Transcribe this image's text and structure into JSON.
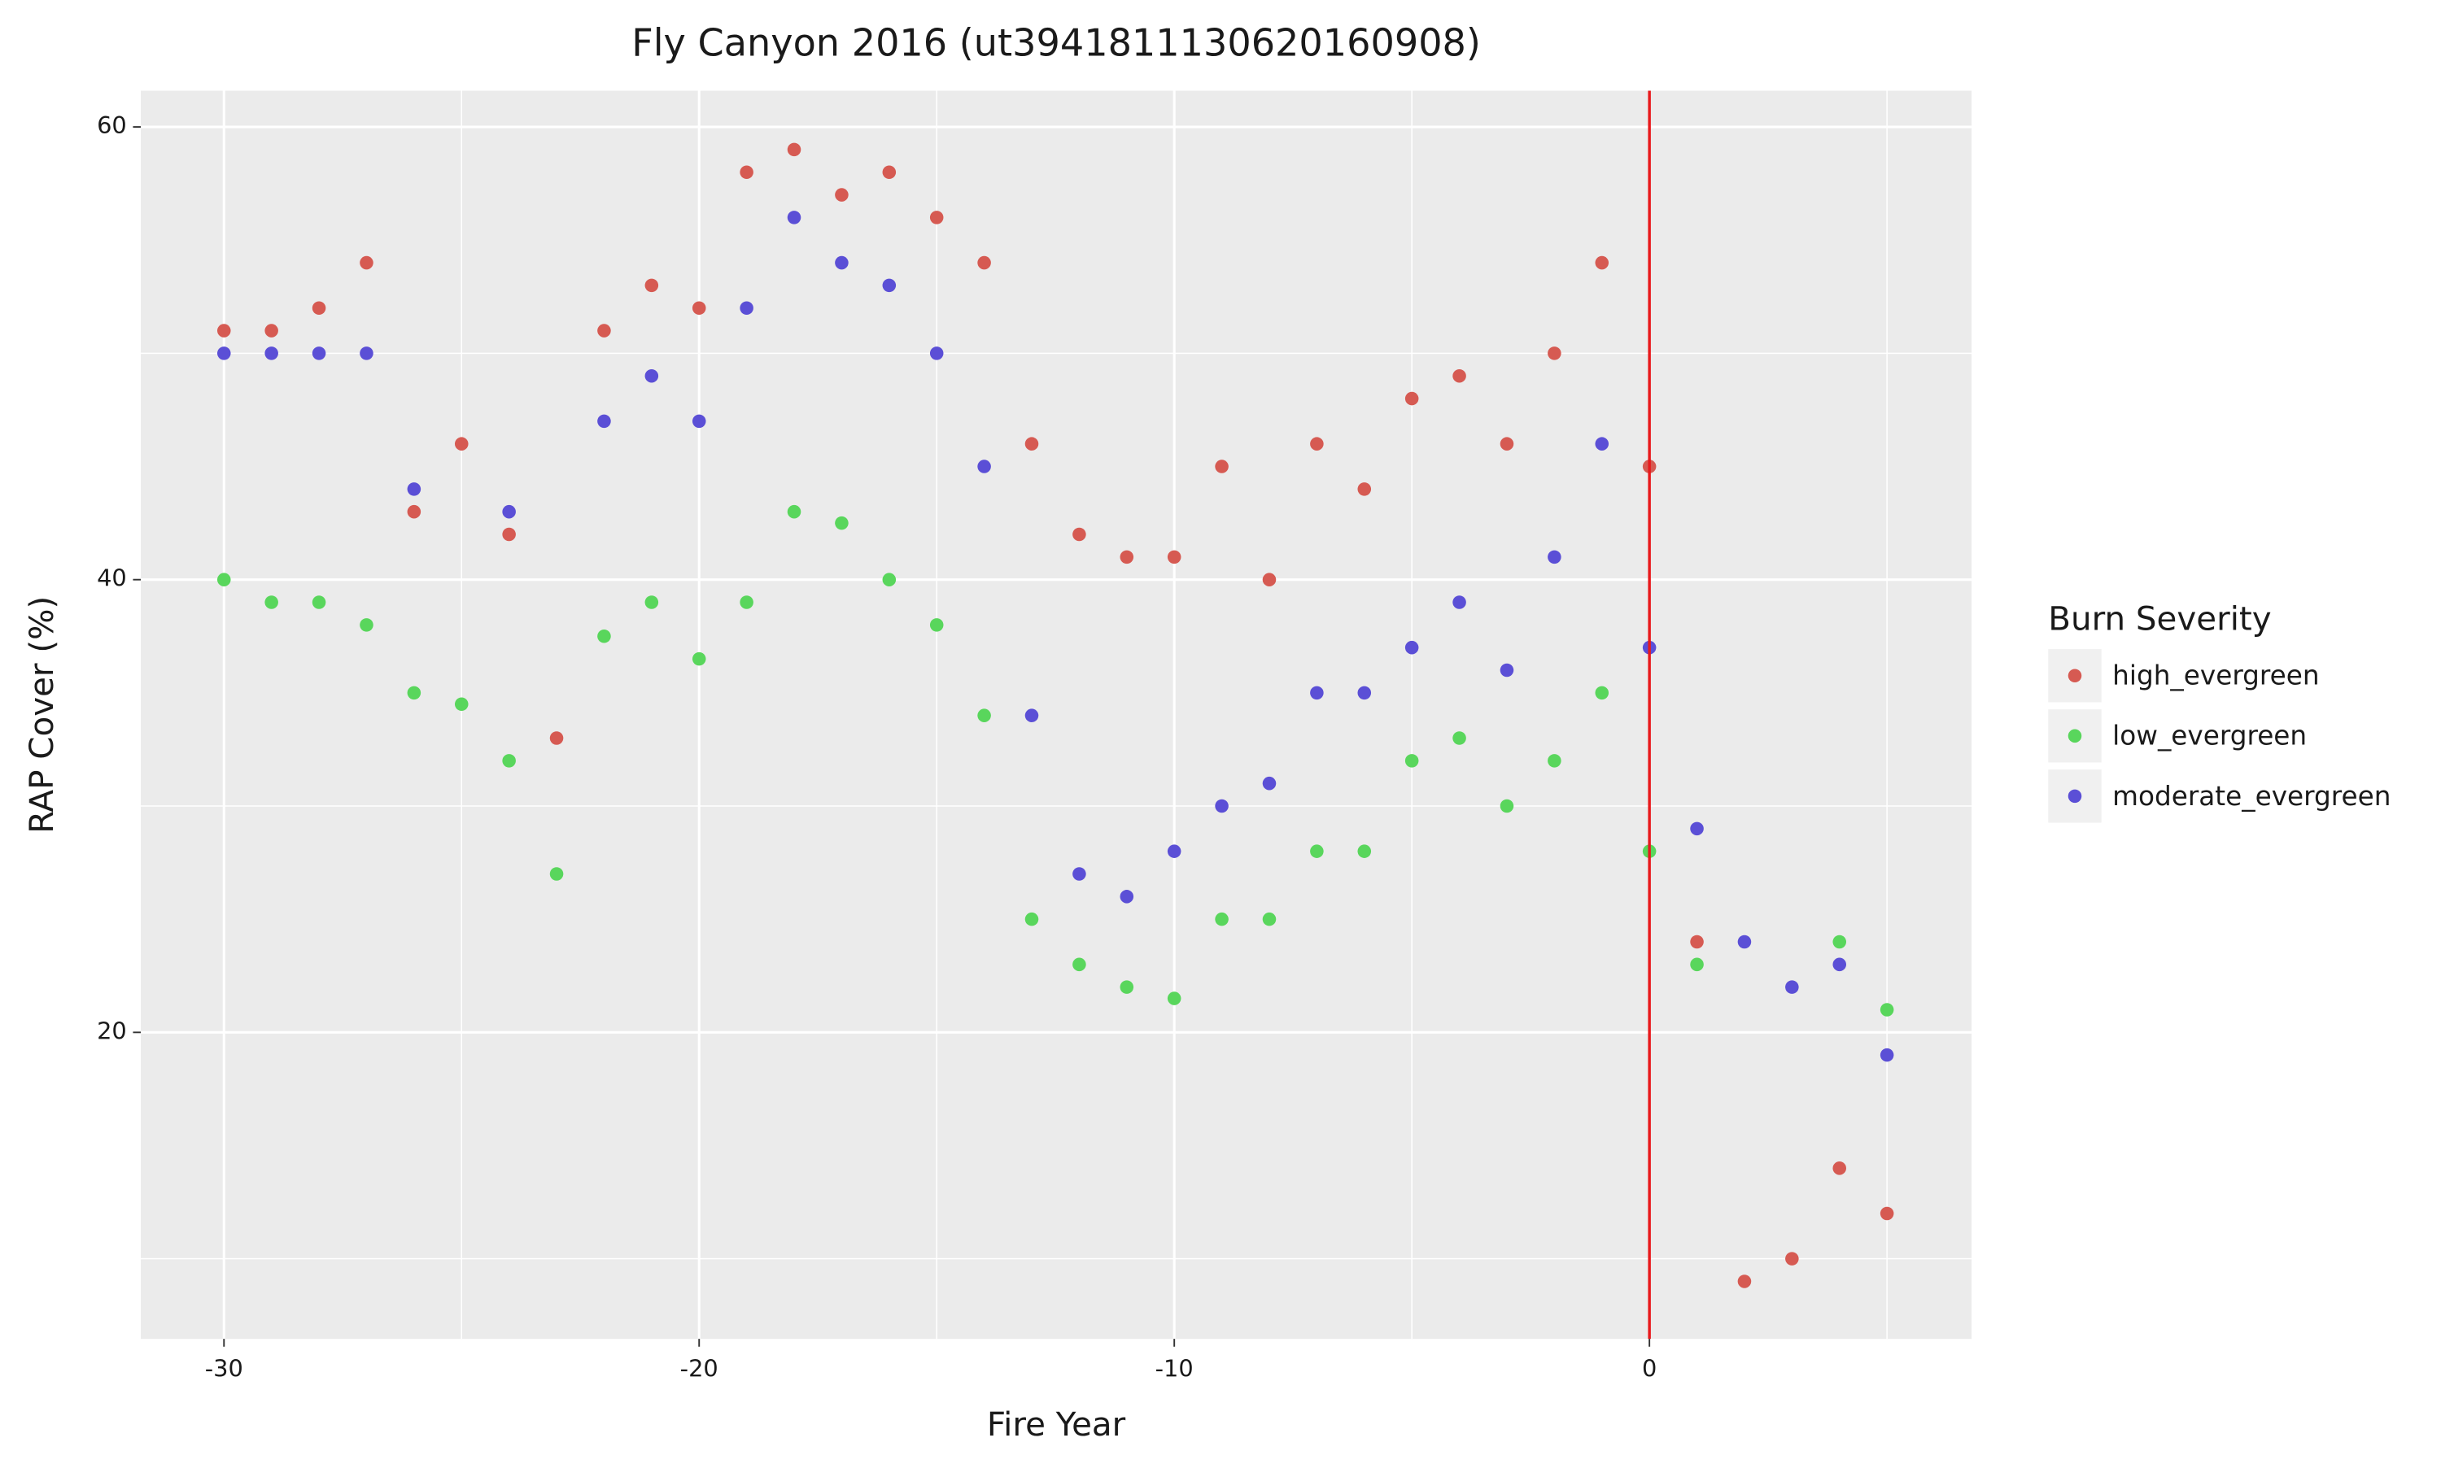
{
  "chart_data": {
    "type": "scatter",
    "title": "Fly Canyon 2016 (ut3941811130620160908)",
    "x_label": "Fire Year",
    "y_label": "RAP Cover (%)",
    "legend_title": "Burn Severity",
    "x": [
      -30,
      -29,
      -28,
      -27,
      -26,
      -25,
      -24,
      -23,
      -22,
      -21,
      -20,
      -19,
      -18,
      -17,
      -16,
      -15,
      -14,
      -13,
      -12,
      -11,
      -10,
      -9,
      -8,
      -7,
      -6,
      -5,
      -4,
      -3,
      -2,
      -1,
      0,
      1,
      2,
      3,
      4,
      5
    ],
    "series": [
      {
        "name": "high_evergreen",
        "color": "#d65a52",
        "values": [
          51,
          51,
          52,
          54,
          43,
          46,
          42,
          33,
          51,
          53,
          52,
          58,
          59,
          57,
          58,
          56,
          54,
          46,
          42,
          41,
          41,
          45,
          40,
          46,
          44,
          48,
          49,
          46,
          50,
          54,
          45,
          24,
          9,
          10,
          14,
          12
        ]
      },
      {
        "name": "low_evergreen",
        "color": "#59d65c",
        "values": [
          40,
          39,
          39,
          38,
          35,
          34.5,
          32,
          27,
          37.5,
          39,
          36.5,
          39,
          43,
          42.5,
          40,
          38,
          34,
          25,
          23,
          22,
          21.5,
          25,
          25,
          28,
          28,
          32,
          33,
          30,
          32,
          35,
          28,
          23,
          null,
          null,
          24,
          21
        ]
      },
      {
        "name": "moderate_evergreen",
        "color": "#5b4fd6",
        "values": [
          50,
          50,
          50,
          50,
          44,
          null,
          43,
          null,
          47,
          49,
          47,
          52,
          56,
          54,
          53,
          50,
          45,
          34,
          27,
          26,
          28,
          30,
          31,
          35,
          35,
          37,
          39,
          36,
          41,
          46,
          37,
          29,
          24,
          22,
          23,
          19
        ]
      }
    ],
    "xlim": [
      -31.75,
      6.78
    ],
    "ylim": [
      6.46,
      61.6
    ],
    "xticks": [
      -30,
      -20,
      -10,
      0
    ],
    "yticks": [
      20,
      40,
      60
    ],
    "x_minor_grid": [
      -25,
      -15,
      -5,
      5
    ],
    "y_minor_grid": [
      10,
      30,
      50
    ],
    "grid": true,
    "legend": "right",
    "vline": 0,
    "vline_color": "#e8191c"
  }
}
